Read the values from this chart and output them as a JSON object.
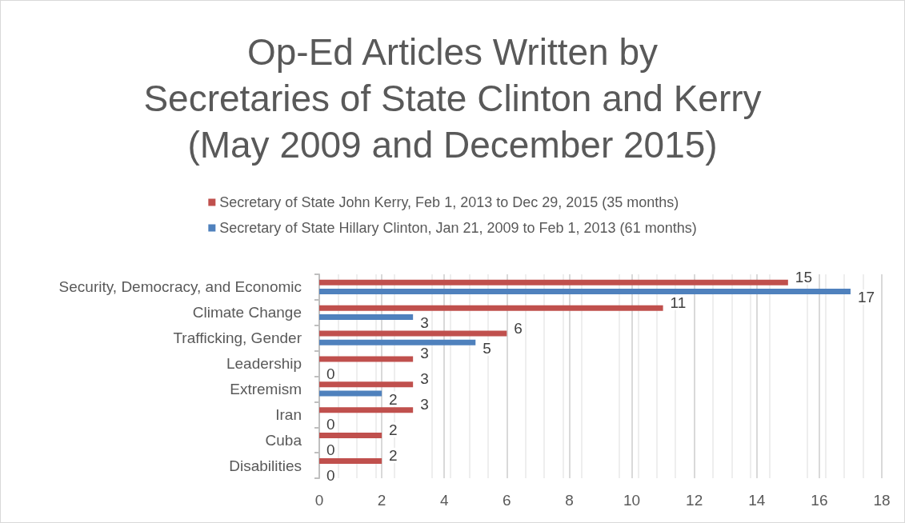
{
  "chart_data": {
    "type": "bar",
    "orientation": "horizontal",
    "title": "Op-Ed Articles Written by\nSecretaries of State Clinton and Kerry\n(May 2009 and December 2015)",
    "categories": [
      "Security, Democracy, and Economic",
      "Climate Change",
      "Trafficking, Gender",
      "Leadership",
      "Extremism",
      "Iran",
      "Cuba",
      "Disabilities"
    ],
    "series": [
      {
        "name": "Secretary of State John Kerry, Feb 1, 2013 to Dec 29, 2015 (35 months)",
        "color": "#c0504d",
        "values": [
          15,
          11,
          6,
          3,
          3,
          3,
          2,
          2
        ]
      },
      {
        "name": "Secretary of State Hillary Clinton, Jan 21, 2009 to Feb 1, 2013 (61 months)",
        "color": "#4f81bd",
        "values": [
          17,
          3,
          5,
          0,
          2,
          0,
          0,
          0
        ]
      }
    ],
    "xlim": [
      0,
      18
    ],
    "xticks": [
      0,
      2,
      4,
      6,
      8,
      10,
      12,
      14,
      16,
      18
    ],
    "grid": "x",
    "legend": "top",
    "data_labels": true
  }
}
